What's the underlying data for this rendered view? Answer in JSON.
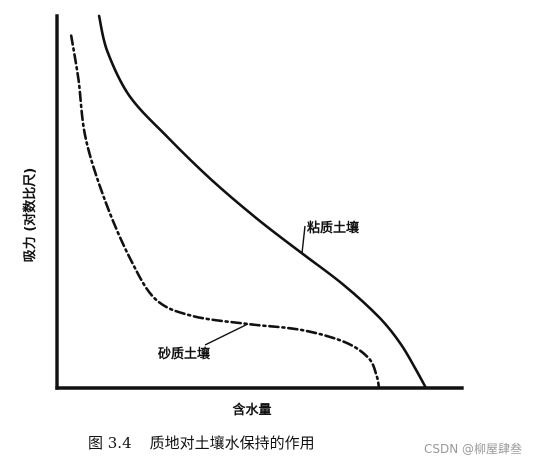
{
  "chart_data": {
    "type": "line",
    "title": "",
    "xlabel": "含水量",
    "ylabel": "吸力 (对数比尺)",
    "xlim": [
      0,
      100
    ],
    "ylim": [
      0,
      100
    ],
    "grid": false,
    "legend": "none",
    "series": [
      {
        "name": "粘质土壤",
        "style": "solid",
        "x": [
          10.4,
          12.4,
          17.9,
          27.5,
          38.2,
          49.5,
          60.5,
          70.8,
          79.8,
          84.9,
          88.5,
          91.1
        ],
        "y": [
          100,
          90.6,
          78.5,
          67.2,
          55.9,
          45.4,
          36.2,
          27.7,
          18.7,
          11.8,
          5.2,
          0
        ]
      },
      {
        "name": "砂质土壤",
        "style": "dash-dot",
        "x": [
          3.5,
          5.3,
          7.1,
          12.0,
          18.2,
          24.4,
          33.3,
          47.1,
          60.4,
          71.1,
          76.9,
          78.9,
          79.5
        ],
        "y": [
          94.7,
          82.9,
          67.0,
          50.0,
          34.5,
          23.8,
          19.4,
          17.2,
          15.6,
          12.3,
          8.1,
          3.4,
          0
        ]
      }
    ]
  },
  "caption": {
    "number": "图 3.4",
    "text": "质地对土壤水保持的作用"
  },
  "watermark": "CSDN @柳屋肆叁",
  "colors": {
    "ink": "#111111",
    "background": "#ffffff",
    "watermark": "#9a9a9a"
  }
}
